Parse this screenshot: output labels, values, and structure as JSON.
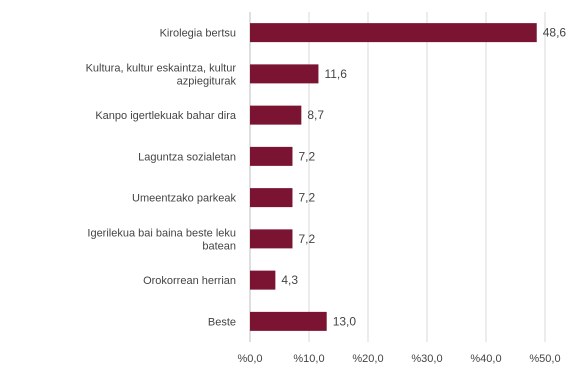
{
  "chart_data": {
    "type": "bar",
    "orientation": "horizontal",
    "categories": [
      [
        "Kirolegia bertsu"
      ],
      [
        "Kultura, kultur eskaintza, kultur",
        "azpiegiturak"
      ],
      [
        "Kanpo igertlekuak bahar dira"
      ],
      [
        "Laguntza sozialetan"
      ],
      [
        "Umeentzako parkeak"
      ],
      [
        "Igerilekua bai baina beste leku",
        "batean"
      ],
      [
        "Orokorrean herrian"
      ],
      [
        "Beste"
      ]
    ],
    "values": [
      48.6,
      11.6,
      8.7,
      7.2,
      7.2,
      7.2,
      4.3,
      13.0
    ],
    "value_labels": [
      "48,6",
      "11,6",
      "8,7",
      "7,2",
      "7,2",
      "7,2",
      "4,3",
      "13,0"
    ],
    "x_ticks": [
      0,
      10,
      20,
      30,
      40,
      50
    ],
    "x_tick_labels": [
      "%0,0",
      "%10,0",
      "%20,0",
      "%30,0",
      "%40,0",
      "%50,0"
    ],
    "xlim": [
      0,
      50
    ],
    "bar_color": "#7b1433",
    "grid": true
  }
}
